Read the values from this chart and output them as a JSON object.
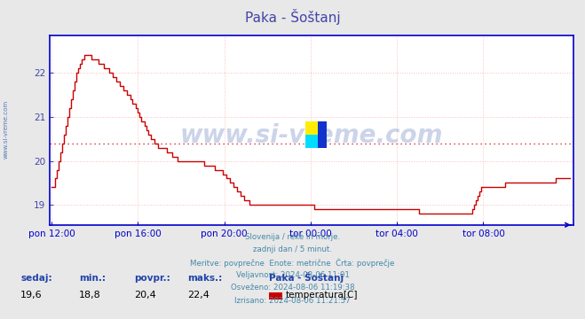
{
  "title": "Paka - Šoštanj",
  "title_color": "#4444aa",
  "bg_color": "#e8e8e8",
  "plot_bg_color": "#ffffff",
  "line_color": "#cc0000",
  "line_width": 1.0,
  "avg_line_value": 20.4,
  "avg_line_color": "#cc0000",
  "ylim_min": 18.55,
  "ylim_max": 22.85,
  "yticks": [
    19,
    20,
    21,
    22
  ],
  "grid_color": "#ffbbbb",
  "axis_color": "#0000cc",
  "ylabel_color": "#4444aa",
  "xlabel_color": "#4444aa",
  "watermark": "www.si-vreme.com",
  "watermark_color": "#3355aa",
  "watermark_alpha": 0.25,
  "left_label_color": "#5577bb",
  "info_lines": [
    "Slovenija / reke in morje.",
    "zadnji dan / 5 minut.",
    "Meritve: povprečne  Enote: metrične  Črta: povprečje",
    "Veljavnost: 2024-08-06 11:01",
    "Osveženo: 2024-08-06 11:19:38",
    "Izrisano: 2024-08-06 11:21:57"
  ],
  "footer_labels": [
    "sedaj:",
    "min.:",
    "povpr.:",
    "maks.:"
  ],
  "footer_values": [
    "19,6",
    "18,8",
    "20,4",
    "22,4"
  ],
  "footer_station": "Paka - Šoštanj",
  "footer_legend_label": "temperatura[C]",
  "footer_legend_color": "#cc0000",
  "xtick_labels": [
    "pon 12:00",
    "pon 16:00",
    "pon 20:00",
    "tor 00:00",
    "tor 04:00",
    "tor 08:00"
  ],
  "xtick_positions": [
    0,
    48,
    96,
    144,
    192,
    240
  ],
  "temperature": [
    19.4,
    19.4,
    19.6,
    19.8,
    20.0,
    20.2,
    20.4,
    20.6,
    20.8,
    21.0,
    21.2,
    21.4,
    21.6,
    21.8,
    22.0,
    22.1,
    22.2,
    22.3,
    22.4,
    22.4,
    22.4,
    22.4,
    22.3,
    22.3,
    22.3,
    22.3,
    22.2,
    22.2,
    22.2,
    22.1,
    22.1,
    22.1,
    22.0,
    22.0,
    21.9,
    21.9,
    21.8,
    21.8,
    21.7,
    21.7,
    21.6,
    21.6,
    21.5,
    21.5,
    21.4,
    21.3,
    21.3,
    21.2,
    21.1,
    21.0,
    20.9,
    20.9,
    20.8,
    20.7,
    20.6,
    20.5,
    20.5,
    20.4,
    20.4,
    20.3,
    20.3,
    20.3,
    20.3,
    20.3,
    20.2,
    20.2,
    20.2,
    20.1,
    20.1,
    20.1,
    20.0,
    20.0,
    20.0,
    20.0,
    20.0,
    20.0,
    20.0,
    20.0,
    20.0,
    20.0,
    20.0,
    20.0,
    20.0,
    20.0,
    20.0,
    19.9,
    19.9,
    19.9,
    19.9,
    19.9,
    19.9,
    19.8,
    19.8,
    19.8,
    19.8,
    19.7,
    19.7,
    19.6,
    19.6,
    19.5,
    19.5,
    19.4,
    19.4,
    19.3,
    19.3,
    19.2,
    19.2,
    19.1,
    19.1,
    19.1,
    19.0,
    19.0,
    19.0,
    19.0,
    19.0,
    19.0,
    19.0,
    19.0,
    19.0,
    19.0,
    19.0,
    19.0,
    19.0,
    19.0,
    19.0,
    19.0,
    19.0,
    19.0,
    19.0,
    19.0,
    19.0,
    19.0,
    19.0,
    19.0,
    19.0,
    19.0,
    19.0,
    19.0,
    19.0,
    19.0,
    19.0,
    19.0,
    19.0,
    19.0,
    19.0,
    19.0,
    18.9,
    18.9,
    18.9,
    18.9,
    18.9,
    18.9,
    18.9,
    18.9,
    18.9,
    18.9,
    18.9,
    18.9,
    18.9,
    18.9,
    18.9,
    18.9,
    18.9,
    18.9,
    18.9,
    18.9,
    18.9,
    18.9,
    18.9,
    18.9,
    18.9,
    18.9,
    18.9,
    18.9,
    18.9,
    18.9,
    18.9,
    18.9,
    18.9,
    18.9,
    18.9,
    18.9,
    18.9,
    18.9,
    18.9,
    18.9,
    18.9,
    18.9,
    18.9,
    18.9,
    18.9,
    18.9,
    18.9,
    18.9,
    18.9,
    18.9,
    18.9,
    18.9,
    18.9,
    18.9,
    18.9,
    18.9,
    18.9,
    18.9,
    18.8,
    18.8,
    18.8,
    18.8,
    18.8,
    18.8,
    18.8,
    18.8,
    18.8,
    18.8,
    18.8,
    18.8,
    18.8,
    18.8,
    18.8,
    18.8,
    18.8,
    18.8,
    18.8,
    18.8,
    18.8,
    18.8,
    18.8,
    18.8,
    18.8,
    18.8,
    18.8,
    18.8,
    18.8,
    18.8,
    18.9,
    19.0,
    19.1,
    19.2,
    19.3,
    19.4,
    19.4,
    19.4,
    19.4,
    19.4,
    19.4,
    19.4,
    19.4,
    19.4,
    19.4,
    19.4,
    19.4,
    19.4,
    19.5,
    19.5,
    19.5,
    19.5,
    19.5,
    19.5,
    19.5,
    19.5,
    19.5,
    19.5,
    19.5,
    19.5,
    19.5,
    19.5,
    19.5,
    19.5,
    19.5,
    19.5,
    19.5,
    19.5,
    19.5,
    19.5,
    19.5,
    19.5,
    19.5,
    19.5,
    19.5,
    19.5,
    19.6,
    19.6,
    19.6,
    19.6,
    19.6,
    19.6,
    19.6,
    19.6,
    19.6
  ]
}
